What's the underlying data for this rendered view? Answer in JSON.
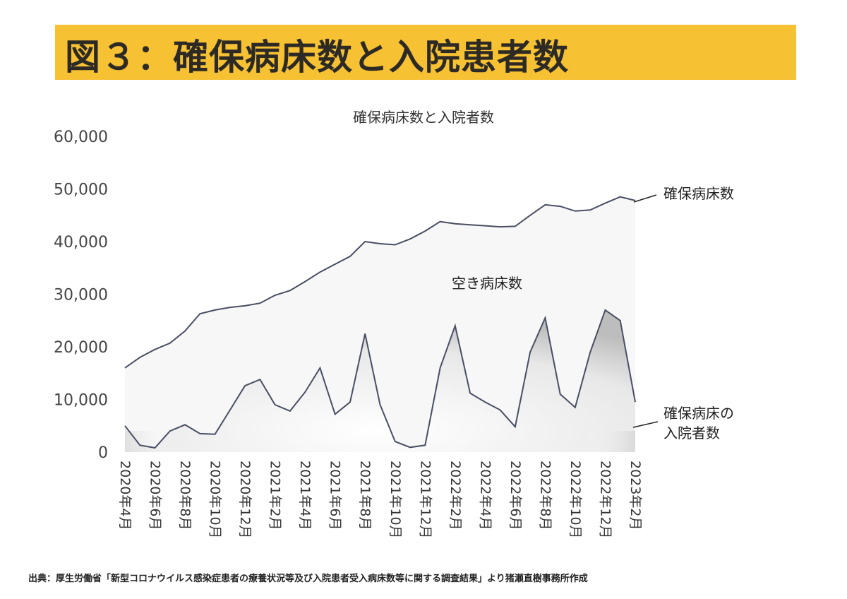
{
  "header": {
    "title": "図３：確保病床数と入院患者数"
  },
  "source": "出典：厚生労働省「新型コロナウイルス感染症患者の療養状況等及び入院患者受入病床数等に関する調査結果」より猪瀬直樹事務所作成",
  "chart_data": {
    "type": "area",
    "title": "確保病床数と入院者数",
    "ylim": [
      0,
      60000
    ],
    "yticks": [
      "0",
      "10,000",
      "20,000",
      "30,000",
      "40,000",
      "50,000",
      "60,000"
    ],
    "xlim": [
      "2020-04",
      "2023-02"
    ],
    "xticks": [
      "2020年4月",
      "2020年6月",
      "2020年8月",
      "2020年10月",
      "2020年12月",
      "2021年2月",
      "2021年4月",
      "2021年6月",
      "2021年8月",
      "2021年10月",
      "2021年12月",
      "2022年2月",
      "2022年4月",
      "2022年6月",
      "2022年8月",
      "2022年10月",
      "2022年12月",
      "2023年2月"
    ],
    "grid": false,
    "annotations": {
      "beds_label": "確保病床数",
      "free_label": "空き病床数",
      "inpatient_label_line1": "確保病床の",
      "inpatient_label_line2": "入院者数"
    },
    "series": [
      {
        "name": "確保病床数",
        "x": [
          "2020-04",
          "2020-05",
          "2020-06",
          "2020-07",
          "2020-08",
          "2020-09",
          "2020-10",
          "2020-11",
          "2020-12",
          "2021-01",
          "2021-02",
          "2021-03",
          "2021-04",
          "2021-05",
          "2021-06",
          "2021-07",
          "2021-08",
          "2021-09",
          "2021-10",
          "2021-11",
          "2021-12",
          "2022-01",
          "2022-02",
          "2022-03",
          "2022-04",
          "2022-05",
          "2022-06",
          "2022-07",
          "2022-08",
          "2022-09",
          "2022-10",
          "2022-11",
          "2022-12",
          "2023-01",
          "2023-02"
        ],
        "values": [
          16000,
          18000,
          19500,
          20700,
          23000,
          26300,
          27000,
          27500,
          27800,
          28300,
          29800,
          30700,
          32400,
          34200,
          35700,
          37200,
          40000,
          39600,
          39400,
          40500,
          42000,
          43800,
          43400,
          43200,
          43000,
          42800,
          42900,
          45000,
          47000,
          46700,
          45800,
          46000,
          47300,
          48500,
          47800
        ]
      },
      {
        "name": "確保病床の入院者数",
        "x": [
          "2020-04",
          "2020-05",
          "2020-06",
          "2020-07",
          "2020-08",
          "2020-09",
          "2020-10",
          "2020-11",
          "2020-12",
          "2021-01",
          "2021-02",
          "2021-03",
          "2021-04",
          "2021-05",
          "2021-06",
          "2021-07",
          "2021-08",
          "2021-09",
          "2021-10",
          "2021-11",
          "2021-12",
          "2022-01",
          "2022-02",
          "2022-03",
          "2022-04",
          "2022-05",
          "2022-06",
          "2022-07",
          "2022-08",
          "2022-09",
          "2022-10",
          "2022-11",
          "2022-12",
          "2023-01",
          "2023-02"
        ],
        "values": [
          5000,
          1300,
          800,
          4000,
          5200,
          3500,
          3400,
          8000,
          12600,
          13800,
          9000,
          7800,
          11400,
          16000,
          7200,
          9500,
          22500,
          9000,
          2000,
          900,
          1300,
          16000,
          24000,
          11200,
          9500,
          8000,
          4800,
          19000,
          25500,
          11000,
          8500,
          19000,
          27000,
          25000,
          9500
        ]
      }
    ]
  }
}
